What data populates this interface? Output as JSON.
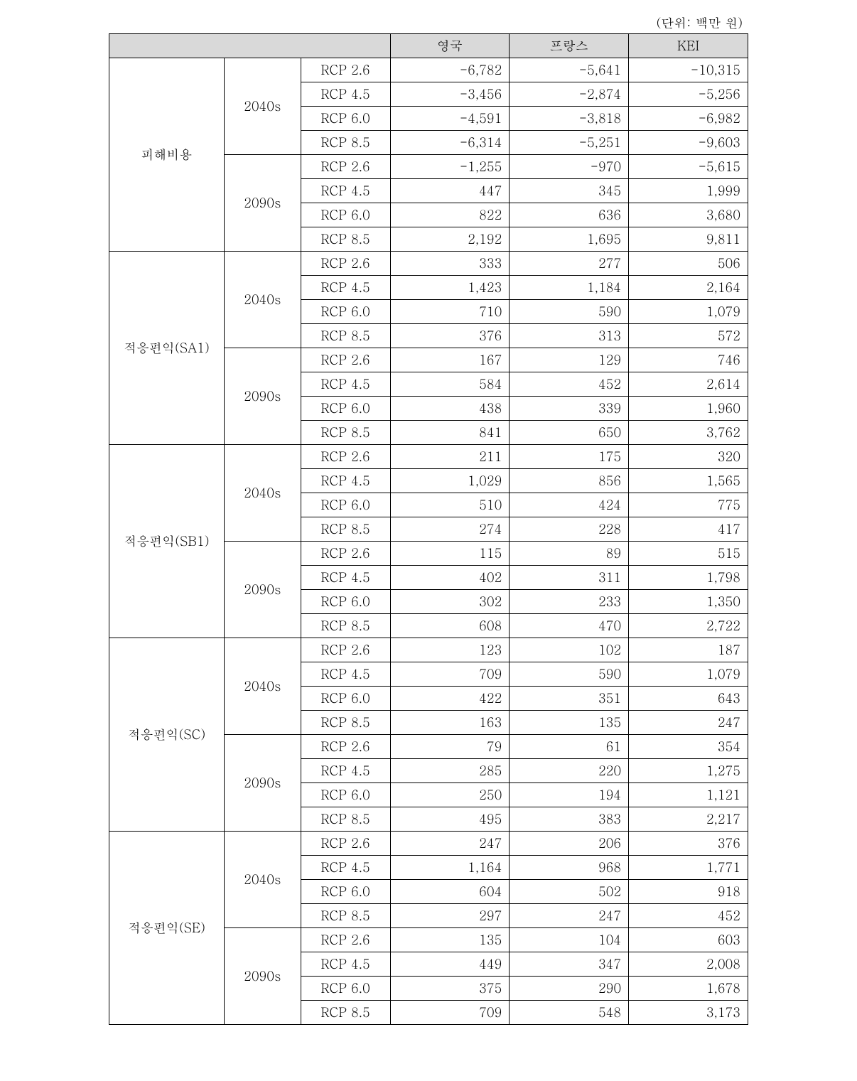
{
  "unit_label": "(단위: 백만 원)",
  "columns": {
    "c1": "영국",
    "c2": "프랑스",
    "c3": "KEI"
  },
  "categories": [
    {
      "name": "피해비용",
      "periods": [
        {
          "name": "2040s",
          "rows": [
            {
              "scenario": "RCP 2.6",
              "v": [
                "-6,782",
                "-5,641",
                "-10,315"
              ]
            },
            {
              "scenario": "RCP 4.5",
              "v": [
                "-3,456",
                "-2,874",
                "-5,256"
              ]
            },
            {
              "scenario": "RCP 6.0",
              "v": [
                "-4,591",
                "-3,818",
                "-6,982"
              ]
            },
            {
              "scenario": "RCP 8.5",
              "v": [
                "-6,314",
                "-5,251",
                "-9,603"
              ]
            }
          ]
        },
        {
          "name": "2090s",
          "rows": [
            {
              "scenario": "RCP 2.6",
              "v": [
                "-1,255",
                "-970",
                "-5,615"
              ]
            },
            {
              "scenario": "RCP 4.5",
              "v": [
                "447",
                "345",
                "1,999"
              ]
            },
            {
              "scenario": "RCP 6.0",
              "v": [
                "822",
                "636",
                "3,680"
              ]
            },
            {
              "scenario": "RCP 8.5",
              "v": [
                "2,192",
                "1,695",
                "9,811"
              ]
            }
          ]
        }
      ]
    },
    {
      "name": "적응편익(SA1)",
      "periods": [
        {
          "name": "2040s",
          "rows": [
            {
              "scenario": "RCP 2.6",
              "v": [
                "333",
                "277",
                "506"
              ]
            },
            {
              "scenario": "RCP 4.5",
              "v": [
                "1,423",
                "1,184",
                "2,164"
              ]
            },
            {
              "scenario": "RCP 6.0",
              "v": [
                "710",
                "590",
                "1,079"
              ]
            },
            {
              "scenario": "RCP 8.5",
              "v": [
                "376",
                "313",
                "572"
              ]
            }
          ]
        },
        {
          "name": "2090s",
          "rows": [
            {
              "scenario": "RCP 2.6",
              "v": [
                "167",
                "129",
                "746"
              ]
            },
            {
              "scenario": "RCP 4.5",
              "v": [
                "584",
                "452",
                "2,614"
              ]
            },
            {
              "scenario": "RCP 6.0",
              "v": [
                "438",
                "339",
                "1,960"
              ]
            },
            {
              "scenario": "RCP 8.5",
              "v": [
                "841",
                "650",
                "3,762"
              ]
            }
          ]
        }
      ]
    },
    {
      "name": "적응편익(SB1)",
      "periods": [
        {
          "name": "2040s",
          "rows": [
            {
              "scenario": "RCP 2.6",
              "v": [
                "211",
                "175",
                "320"
              ]
            },
            {
              "scenario": "RCP 4.5",
              "v": [
                "1,029",
                "856",
                "1,565"
              ]
            },
            {
              "scenario": "RCP 6.0",
              "v": [
                "510",
                "424",
                "775"
              ]
            },
            {
              "scenario": "RCP 8.5",
              "v": [
                "274",
                "228",
                "417"
              ]
            }
          ]
        },
        {
          "name": "2090s",
          "rows": [
            {
              "scenario": "RCP 2.6",
              "v": [
                "115",
                "89",
                "515"
              ]
            },
            {
              "scenario": "RCP 4.5",
              "v": [
                "402",
                "311",
                "1,798"
              ]
            },
            {
              "scenario": "RCP 6.0",
              "v": [
                "302",
                "233",
                "1,350"
              ]
            },
            {
              "scenario": "RCP 8.5",
              "v": [
                "608",
                "470",
                "2,722"
              ]
            }
          ]
        }
      ]
    },
    {
      "name": "적응편익(SC)",
      "periods": [
        {
          "name": "2040s",
          "rows": [
            {
              "scenario": "RCP 2.6",
              "v": [
                "123",
                "102",
                "187"
              ]
            },
            {
              "scenario": "RCP 4.5",
              "v": [
                "709",
                "590",
                "1,079"
              ]
            },
            {
              "scenario": "RCP 6.0",
              "v": [
                "422",
                "351",
                "643"
              ]
            },
            {
              "scenario": "RCP 8.5",
              "v": [
                "163",
                "135",
                "247"
              ]
            }
          ]
        },
        {
          "name": "2090s",
          "rows": [
            {
              "scenario": "RCP 2.6",
              "v": [
                "79",
                "61",
                "354"
              ]
            },
            {
              "scenario": "RCP 4.5",
              "v": [
                "285",
                "220",
                "1,275"
              ]
            },
            {
              "scenario": "RCP 6.0",
              "v": [
                "250",
                "194",
                "1,121"
              ]
            },
            {
              "scenario": "RCP 8.5",
              "v": [
                "495",
                "383",
                "2,217"
              ]
            }
          ]
        }
      ]
    },
    {
      "name": "적응편익(SE)",
      "periods": [
        {
          "name": "2040s",
          "rows": [
            {
              "scenario": "RCP 2.6",
              "v": [
                "247",
                "206",
                "376"
              ]
            },
            {
              "scenario": "RCP 4.5",
              "v": [
                "1,164",
                "968",
                "1,771"
              ]
            },
            {
              "scenario": "RCP 6.0",
              "v": [
                "604",
                "502",
                "918"
              ]
            },
            {
              "scenario": "RCP 8.5",
              "v": [
                "297",
                "247",
                "452"
              ]
            }
          ]
        },
        {
          "name": "2090s",
          "rows": [
            {
              "scenario": "RCP 2.6",
              "v": [
                "135",
                "104",
                "603"
              ]
            },
            {
              "scenario": "RCP 4.5",
              "v": [
                "449",
                "347",
                "2,008"
              ]
            },
            {
              "scenario": "RCP 6.0",
              "v": [
                "375",
                "290",
                "1,678"
              ]
            },
            {
              "scenario": "RCP 8.5",
              "v": [
                "709",
                "548",
                "3,173"
              ]
            }
          ]
        }
      ]
    }
  ]
}
